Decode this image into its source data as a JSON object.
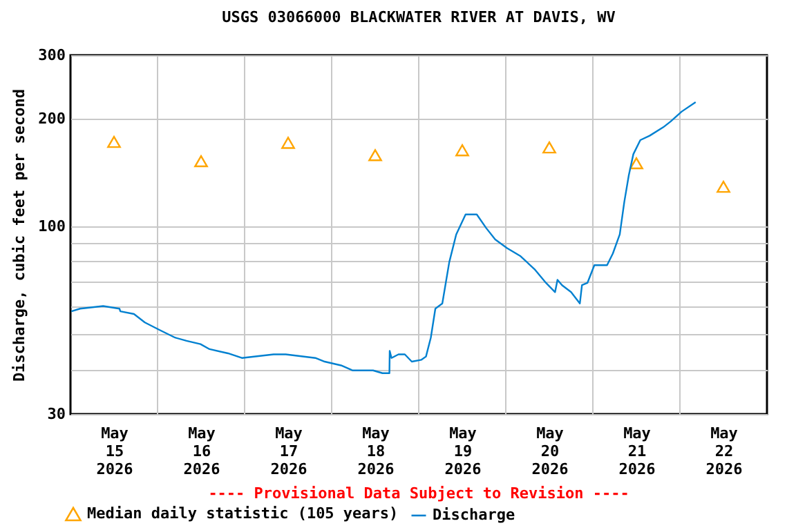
{
  "chart_data": {
    "type": "line",
    "title": "USGS 03066000 BLACKWATER RIVER AT DAVIS, WV",
    "ylabel": "Discharge, cubic feet per second",
    "annotations": [
      "---- Provisional Data Subject to Revision ----"
    ],
    "log": true,
    "grid": true,
    "legend": "bottom",
    "xlim": [
      "2026-05-15T00:00",
      "2026-05-23T00:00"
    ],
    "xticks": [
      {
        "value": "2026-05-15T12:00",
        "label": "May\n15\n2026"
      },
      {
        "value": "2026-05-16T00:00",
        "label": null
      },
      {
        "value": "2026-05-16T12:00",
        "label": "May\n16\n2026"
      },
      {
        "value": "2026-05-17T00:00",
        "label": null
      },
      {
        "value": "2026-05-17T12:00",
        "label": "May\n17\n2026"
      },
      {
        "value": "2026-05-18T00:00",
        "label": null
      },
      {
        "value": "2026-05-18T12:00",
        "label": "May\n18\n2026"
      },
      {
        "value": "2026-05-19T00:00",
        "label": null
      },
      {
        "value": "2026-05-19T12:00",
        "label": "May\n19\n2026"
      },
      {
        "value": "2026-05-20T00:00",
        "label": null
      },
      {
        "value": "2026-05-20T12:00",
        "label": "May\n20\n2026"
      },
      {
        "value": "2026-05-21T00:00",
        "label": null
      },
      {
        "value": "2026-05-21T12:00",
        "label": "May\n21\n2026"
      },
      {
        "value": "2026-05-22T00:00",
        "label": null
      },
      {
        "value": "2026-05-22T12:00",
        "label": "May\n22\n2026"
      }
    ],
    "ylim": [
      30,
      300
    ],
    "yticks": [
      30,
      {
        "value": 40,
        "label": null
      },
      {
        "value": 50,
        "label": null
      },
      {
        "value": 60,
        "label": null
      },
      {
        "value": 70,
        "label": null
      },
      {
        "value": 80,
        "label": null
      },
      {
        "value": 90,
        "label": null
      },
      100,
      200,
      300
    ],
    "series": [
      {
        "name": "Median daily statistic (105 years)",
        "type": "scatter",
        "marker": "triangle",
        "color": "#ffa500",
        "x": [
          "2026-05-15T12:00",
          "2026-05-16T12:00",
          "2026-05-17T12:00",
          "2026-05-18T12:00",
          "2026-05-19T12:00",
          "2026-05-20T12:00",
          "2026-05-21T12:00",
          "2026-05-22T12:00"
        ],
        "values": [
          172,
          152,
          171,
          158,
          163,
          166,
          150,
          129
        ]
      },
      {
        "name": "Discharge",
        "type": "line",
        "color": "#0080d0",
        "x": [
          "2026-05-15T00:15",
          "2026-05-15T02:40",
          "2026-05-15T09:00",
          "2026-05-15T13:30",
          "2026-05-15T13:45",
          "2026-05-15T17:30",
          "2026-05-15T20:30",
          "2026-05-16T00:30",
          "2026-05-16T04:50",
          "2026-05-16T08:00",
          "2026-05-16T11:50",
          "2026-05-16T14:20",
          "2026-05-16T19:25",
          "2026-05-16T23:15",
          "2026-05-17T08:00",
          "2026-05-17T11:20",
          "2026-05-17T19:30",
          "2026-05-17T22:05",
          "2026-05-18T02:35",
          "2026-05-18T05:45",
          "2026-05-18T11:25",
          "2026-05-18T14:00",
          "2026-05-18T15:55",
          "2026-05-18T16:00",
          "2026-05-18T16:30",
          "2026-05-18T18:25",
          "2026-05-18T20:10",
          "2026-05-18T22:05",
          "2026-05-19T00:45",
          "2026-05-19T02:00",
          "2026-05-19T03:20",
          "2026-05-19T04:35",
          "2026-05-19T06:30",
          "2026-05-19T08:25",
          "2026-05-19T10:20",
          "2026-05-19T12:55",
          "2026-05-19T16:00",
          "2026-05-19T18:35",
          "2026-05-19T21:05",
          "2026-05-20T00:20",
          "2026-05-20T04:05",
          "2026-05-20T07:55",
          "2026-05-20T11:05",
          "2026-05-20T13:35",
          "2026-05-20T14:15",
          "2026-05-20T15:30",
          "2026-05-20T18:00",
          "2026-05-20T20:25",
          "2026-05-20T21:00",
          "2026-05-20T22:30",
          "2026-05-21T00:25",
          "2026-05-21T03:55",
          "2026-05-21T05:30",
          "2026-05-21T07:25",
          "2026-05-21T08:40",
          "2026-05-21T09:55",
          "2026-05-21T11:10",
          "2026-05-21T13:05",
          "2026-05-21T15:40",
          "2026-05-21T19:25",
          "2026-05-21T21:25",
          "2026-05-22T00:30",
          "2026-05-22T04:20"
        ],
        "values": [
          58,
          59,
          60,
          59,
          58,
          57,
          54,
          51.5,
          49,
          48,
          47,
          45.5,
          44.3,
          43,
          44,
          44,
          43,
          42,
          41,
          39.7,
          39.7,
          39,
          39,
          45,
          43,
          44,
          44,
          42,
          42.5,
          43.4,
          49,
          59,
          61,
          79.5,
          95,
          108,
          108,
          99,
          92,
          87,
          82.6,
          76,
          69.6,
          65.6,
          71,
          68.6,
          65.6,
          61,
          68.6,
          69.6,
          78,
          78,
          84,
          95,
          117,
          139,
          159,
          174,
          179,
          189,
          196,
          209,
          222
        ]
      }
    ]
  }
}
